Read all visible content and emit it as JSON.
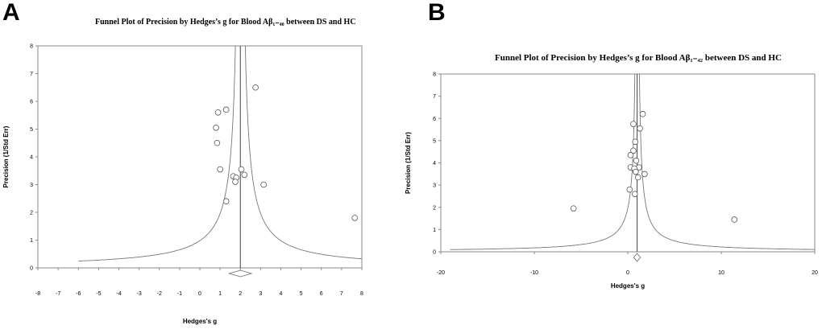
{
  "panels": {
    "a": {
      "letter": "A",
      "title": "Funnel Plot of Precision by Hedges’s g  for Blood Aβ₁₋₄₀ between DS and HC"
    },
    "b": {
      "letter": "B",
      "title": "Funnel Plot of Precision by Hedges’s g  for Blood Aβ₁₋₄₂ between DS and HC"
    }
  },
  "chart_data": [
    {
      "type": "scatter",
      "title": "Funnel Plot of Precision by Hedges’s g  for Blood Aβ₁₋₄₀ between DS and HC",
      "xlabel": "Hedges's g",
      "ylabel": "Precision (1/Std Err)",
      "xlim": [
        -8,
        8
      ],
      "ylim": [
        0,
        8
      ],
      "xticks": [
        -8,
        -7,
        -6,
        -5,
        -4,
        -3,
        -2,
        -1,
        0,
        1,
        2,
        3,
        4,
        5,
        6,
        7,
        8
      ],
      "yticks": [
        0,
        1,
        2,
        3,
        4,
        5,
        6,
        7,
        8
      ],
      "pooled_effect": 2.0,
      "funnel_x_extent": [
        -6,
        8
      ],
      "points": [
        {
          "x": 2.75,
          "y": 6.5
        },
        {
          "x": 1.3,
          "y": 5.7
        },
        {
          "x": 0.9,
          "y": 5.6
        },
        {
          "x": 0.8,
          "y": 5.05
        },
        {
          "x": 0.85,
          "y": 4.5
        },
        {
          "x": 1.0,
          "y": 3.55
        },
        {
          "x": 2.05,
          "y": 3.55
        },
        {
          "x": 2.2,
          "y": 3.35
        },
        {
          "x": 1.65,
          "y": 3.3
        },
        {
          "x": 1.8,
          "y": 3.25
        },
        {
          "x": 1.75,
          "y": 3.1
        },
        {
          "x": 3.15,
          "y": 3.0
        },
        {
          "x": 1.3,
          "y": 2.4
        },
        {
          "x": 7.65,
          "y": 1.8
        }
      ]
    },
    {
      "type": "scatter",
      "title": "Funnel Plot of Precision by Hedges’s g  for Blood Aβ₁₋₄₂ between DS and HC",
      "xlabel": "Hedges's g",
      "ylabel": "Precision (1/Std Err)",
      "xlim": [
        -20,
        20
      ],
      "ylim": [
        0,
        8
      ],
      "xticks": [
        -20,
        -10,
        0,
        10,
        20
      ],
      "yticks": [
        0,
        1,
        2,
        3,
        4,
        5,
        6,
        7,
        8
      ],
      "pooled_effect": 1.0,
      "funnel_x_extent": [
        -19,
        20
      ],
      "points": [
        {
          "x": 1.6,
          "y": 6.2
        },
        {
          "x": 0.6,
          "y": 5.75
        },
        {
          "x": 1.3,
          "y": 5.55
        },
        {
          "x": 0.8,
          "y": 4.95
        },
        {
          "x": 0.6,
          "y": 4.55
        },
        {
          "x": 0.3,
          "y": 4.35
        },
        {
          "x": 0.9,
          "y": 4.1
        },
        {
          "x": 0.3,
          "y": 3.8
        },
        {
          "x": 1.2,
          "y": 3.8
        },
        {
          "x": 0.7,
          "y": 3.75
        },
        {
          "x": 0.85,
          "y": 3.6
        },
        {
          "x": 1.1,
          "y": 3.35
        },
        {
          "x": 1.8,
          "y": 3.5
        },
        {
          "x": 0.2,
          "y": 2.8
        },
        {
          "x": 0.75,
          "y": 2.6
        },
        {
          "x": -5.8,
          "y": 1.95
        },
        {
          "x": 11.4,
          "y": 1.45
        }
      ]
    }
  ]
}
